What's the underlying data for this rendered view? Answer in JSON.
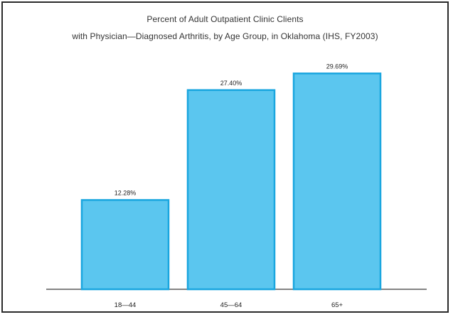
{
  "chart_data": {
    "type": "bar",
    "title_line1": "Percent of Adult Outpatient Clinic Clients",
    "title_line2": "with Physician—Diagnosed Arthritis, by Age Group, in Oklahoma (IHS, FY2003)",
    "categories": [
      "18—44",
      "45—64",
      "65+"
    ],
    "values": [
      12.28,
      27.4,
      29.69
    ],
    "value_labels": [
      "12.28%",
      "27.40%",
      "29.69%"
    ],
    "ylim": [
      0,
      30.7
    ],
    "grid": false,
    "bar_color": "#5bc6ef",
    "bar_edge_color": "#1aa6df"
  }
}
